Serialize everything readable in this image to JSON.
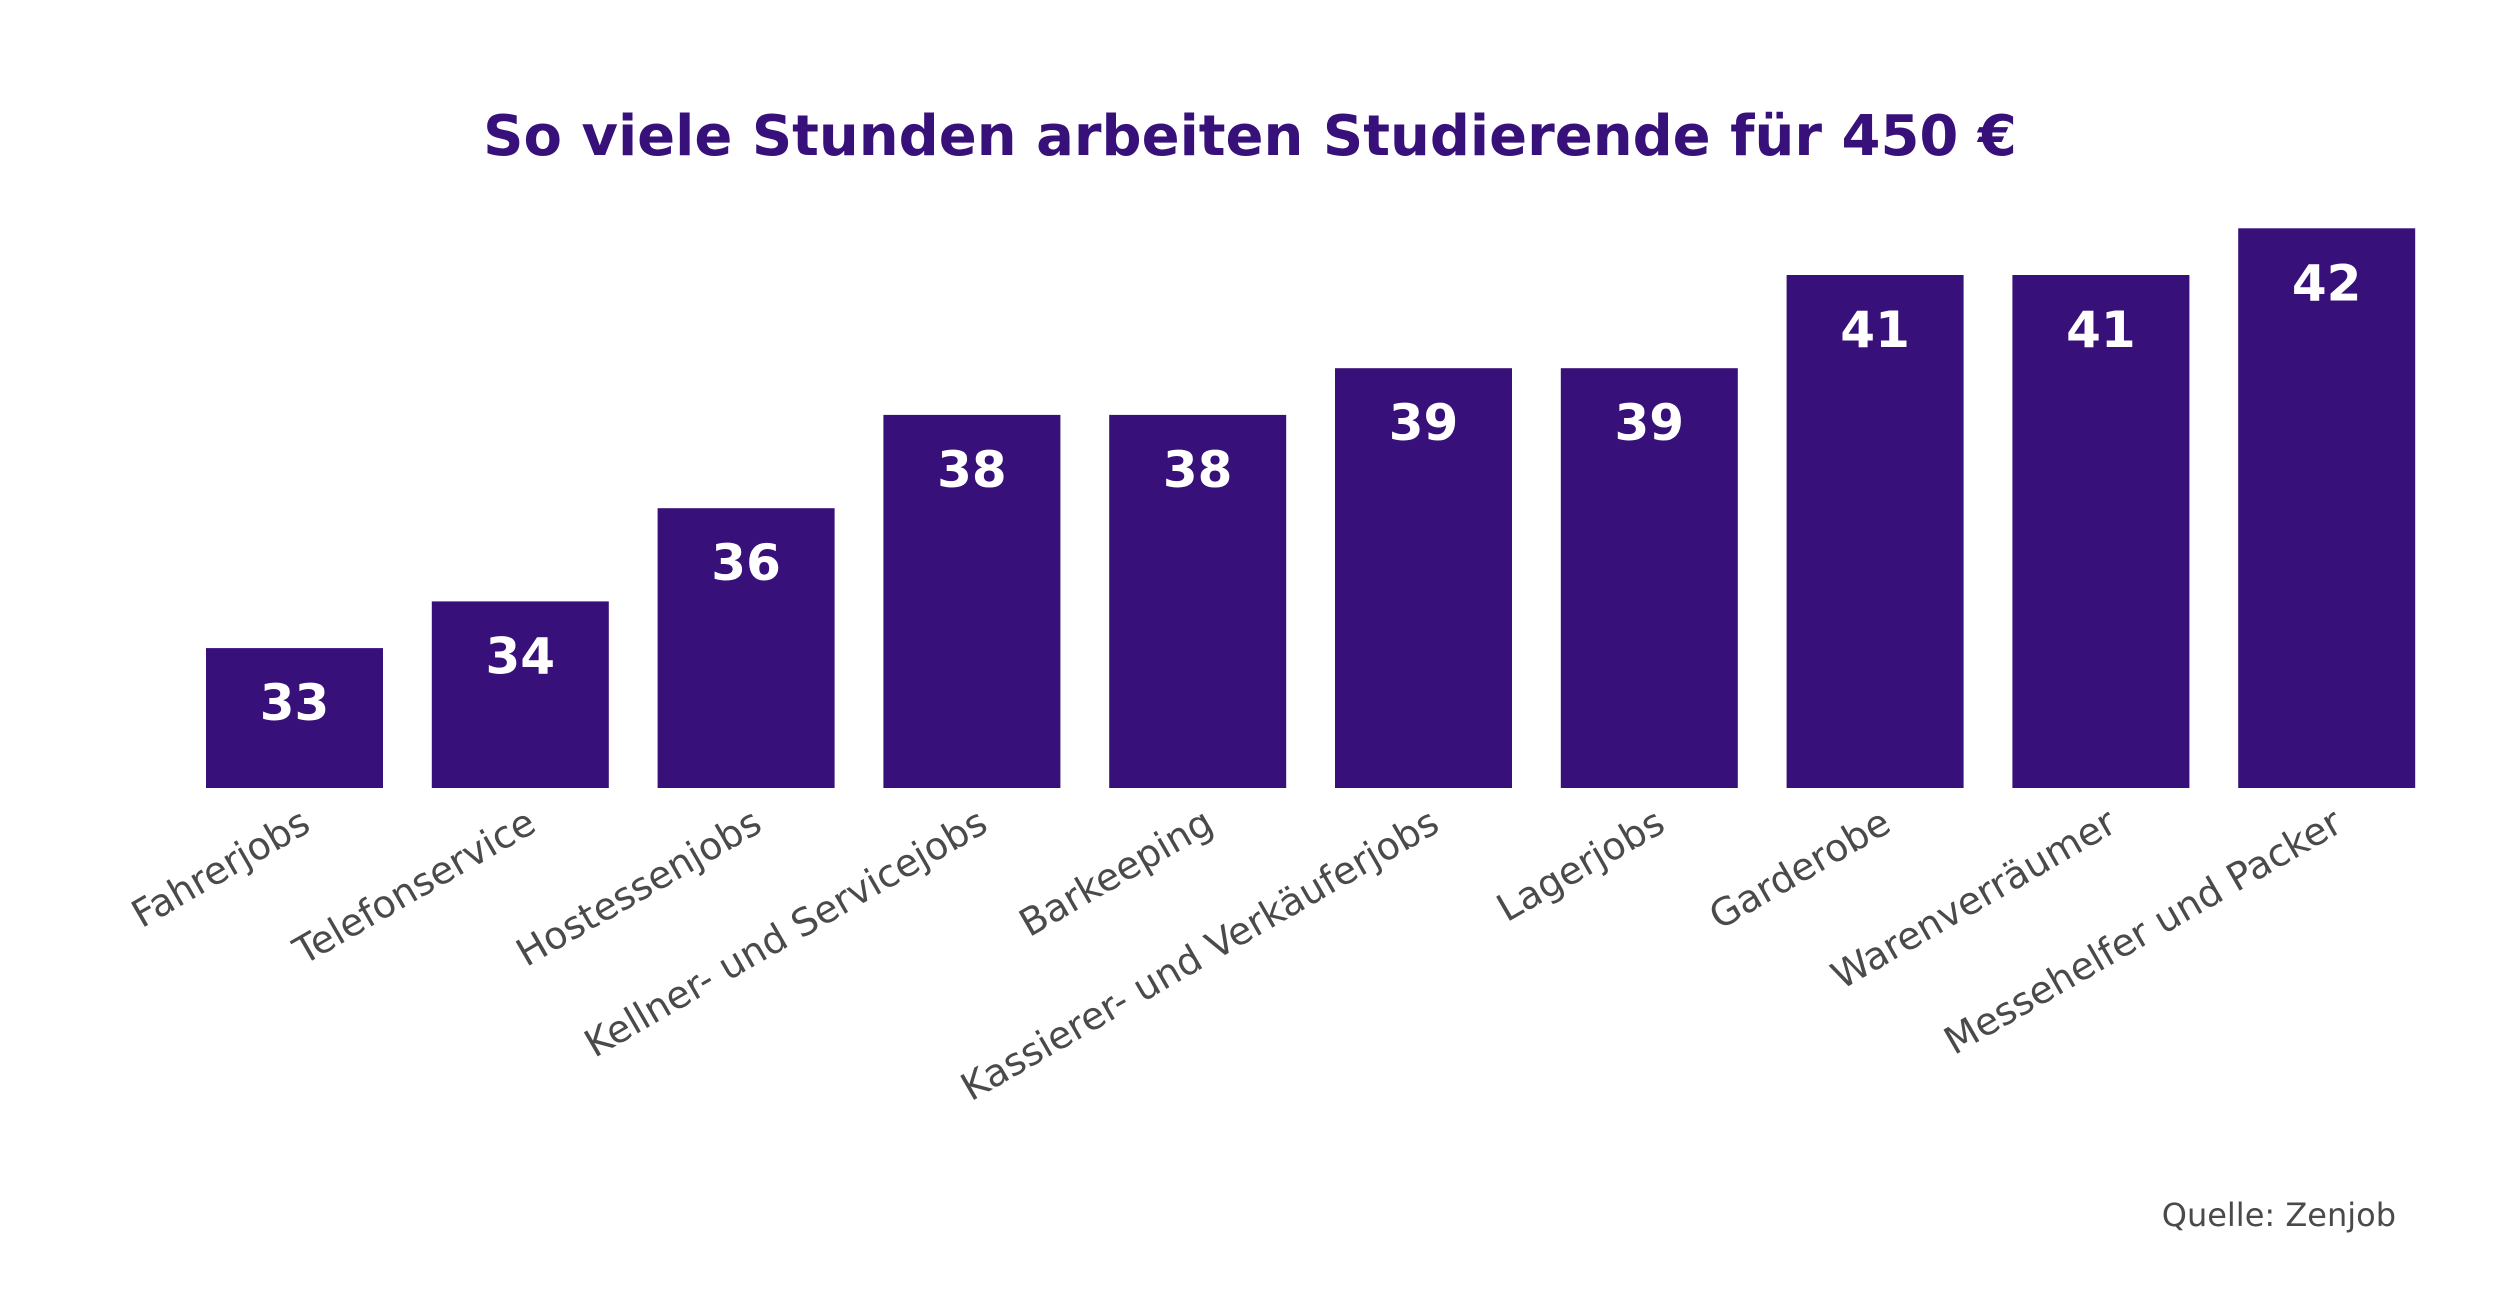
{
  "chart_data": {
    "type": "bar",
    "title": "So viele Stunden arbeiten Studierende für 450 €",
    "categories": [
      "Fahrerjobs",
      "Telefonservice",
      "Hostessenjobs",
      "Kellner- und Servicejobs",
      "Barkeeping",
      "Kassierer- und Verkäuferjobs",
      "Lagerjobs",
      "Garderobe",
      "Warenverräumer",
      "Messehelfer und Packer"
    ],
    "values": [
      33,
      34,
      36,
      38,
      38,
      39,
      39,
      41,
      41,
      42
    ],
    "value_labels": [
      "33",
      "34",
      "36",
      "38",
      "38",
      "39",
      "39",
      "41",
      "41",
      "42"
    ],
    "xlabel": "",
    "ylabel": "",
    "ylim": [
      30,
      42.2
    ],
    "grid": false,
    "legend": "none",
    "source": "Quelle: Zenjob",
    "colors": {
      "bar": "#37107a",
      "title": "#37107a",
      "value_label": "#ffffff",
      "category_label": "#4a4a4a"
    }
  }
}
